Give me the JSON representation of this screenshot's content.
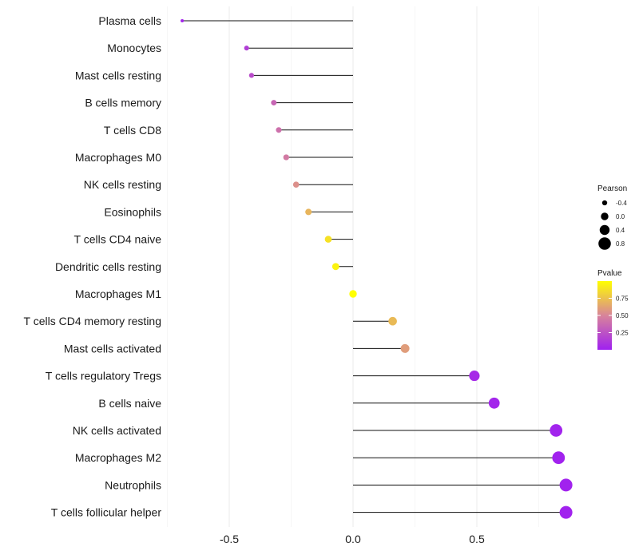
{
  "chart_data": {
    "type": "lollipop",
    "title": "",
    "xlabel": "",
    "ylabel": "",
    "xlim": [
      -0.75,
      0.86
    ],
    "x_ticks": [
      -0.5,
      0.0,
      0.5
    ],
    "x_tick_labels": [
      "-0.5",
      "0.0",
      "0.5"
    ],
    "grid": true,
    "categories": [
      "Plasma cells",
      "Monocytes",
      "Mast cells resting",
      "B cells memory",
      "T cells CD8",
      "Macrophages M0",
      "NK cells resting",
      "Eosinophils",
      "T cells CD4 naive",
      "Dendritic cells resting",
      "Macrophages M1",
      "T cells CD4 memory resting",
      "Mast cells activated",
      "T cells regulatory  Tregs ",
      "B cells naive",
      "NK cells activated",
      "Macrophages M2",
      "Neutrophils",
      "T cells follicular helper"
    ],
    "pearson": [
      -0.69,
      -0.43,
      -0.41,
      -0.32,
      -0.3,
      -0.27,
      -0.23,
      -0.18,
      -0.1,
      -0.07,
      0.0,
      0.16,
      0.21,
      0.49,
      0.57,
      0.82,
      0.83,
      0.86,
      0.86
    ],
    "pvalue": [
      0.03,
      0.15,
      0.22,
      0.35,
      0.4,
      0.45,
      0.55,
      0.7,
      0.88,
      0.95,
      1.0,
      0.72,
      0.6,
      0.05,
      0.03,
      0.02,
      0.01,
      0.01,
      0.01
    ],
    "legend": {
      "size_title": "Pearson",
      "size_breaks": [
        -0.4,
        0.0,
        0.4,
        0.8
      ],
      "size_labels": [
        "-0.4",
        "0.0",
        "0.4",
        "0.8"
      ],
      "color_title": "Pvalue",
      "color_breaks": [
        0.25,
        0.5,
        0.75
      ],
      "color_labels": [
        "0.25",
        "0.50",
        "0.75"
      ],
      "color_low": "#a020f0",
      "color_high": "#ffff00",
      "position": "right"
    }
  }
}
